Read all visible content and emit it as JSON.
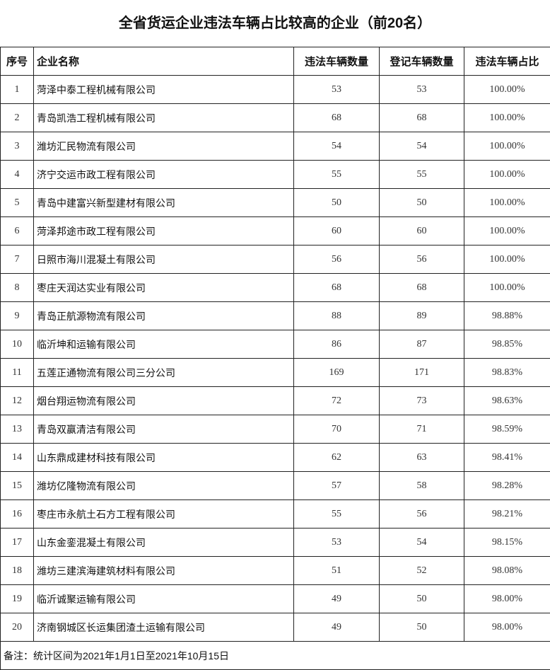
{
  "title": "全省货运企业违法车辆占比较高的企业（前20名）",
  "headers": [
    "序号",
    "企业名称",
    "违法车辆数量",
    "登记车辆数量",
    "违法车辆占比"
  ],
  "rows": [
    [
      "1",
      "菏泽中泰工程机械有限公司",
      "53",
      "53",
      "100.00%"
    ],
    [
      "2",
      "青岛凯浩工程机械有限公司",
      "68",
      "68",
      "100.00%"
    ],
    [
      "3",
      "潍坊汇民物流有限公司",
      "54",
      "54",
      "100.00%"
    ],
    [
      "4",
      "济宁交运市政工程有限公司",
      "55",
      "55",
      "100.00%"
    ],
    [
      "5",
      "青岛中建富兴新型建材有限公司",
      "50",
      "50",
      "100.00%"
    ],
    [
      "6",
      "菏泽邦途市政工程有限公司",
      "60",
      "60",
      "100.00%"
    ],
    [
      "7",
      "日照市海川混凝土有限公司",
      "56",
      "56",
      "100.00%"
    ],
    [
      "8",
      "枣庄天润达实业有限公司",
      "68",
      "68",
      "100.00%"
    ],
    [
      "9",
      "青岛正航源物流有限公司",
      "88",
      "89",
      "98.88%"
    ],
    [
      "10",
      "临沂坤和运输有限公司",
      "86",
      "87",
      "98.85%"
    ],
    [
      "11",
      "五莲正通物流有限公司三分公司",
      "169",
      "171",
      "98.83%"
    ],
    [
      "12",
      "烟台翔运物流有限公司",
      "72",
      "73",
      "98.63%"
    ],
    [
      "13",
      "青岛双赢清洁有限公司",
      "70",
      "71",
      "98.59%"
    ],
    [
      "14",
      "山东鼎成建材科技有限公司",
      "62",
      "63",
      "98.41%"
    ],
    [
      "15",
      "潍坊亿隆物流有限公司",
      "57",
      "58",
      "98.28%"
    ],
    [
      "16",
      "枣庄市永航土石方工程有限公司",
      "55",
      "56",
      "98.21%"
    ],
    [
      "17",
      "山东金銮混凝土有限公司",
      "53",
      "54",
      "98.15%"
    ],
    [
      "18",
      "潍坊三建滨海建筑材料有限公司",
      "51",
      "52",
      "98.08%"
    ],
    [
      "19",
      "临沂诚聚运输有限公司",
      "49",
      "50",
      "98.00%"
    ],
    [
      "20",
      "济南钢城区长运集团渣土运输有限公司",
      "49",
      "50",
      "98.00%"
    ]
  ],
  "note": "备注：统计区间为2021年1月1日至2021年10月15日"
}
